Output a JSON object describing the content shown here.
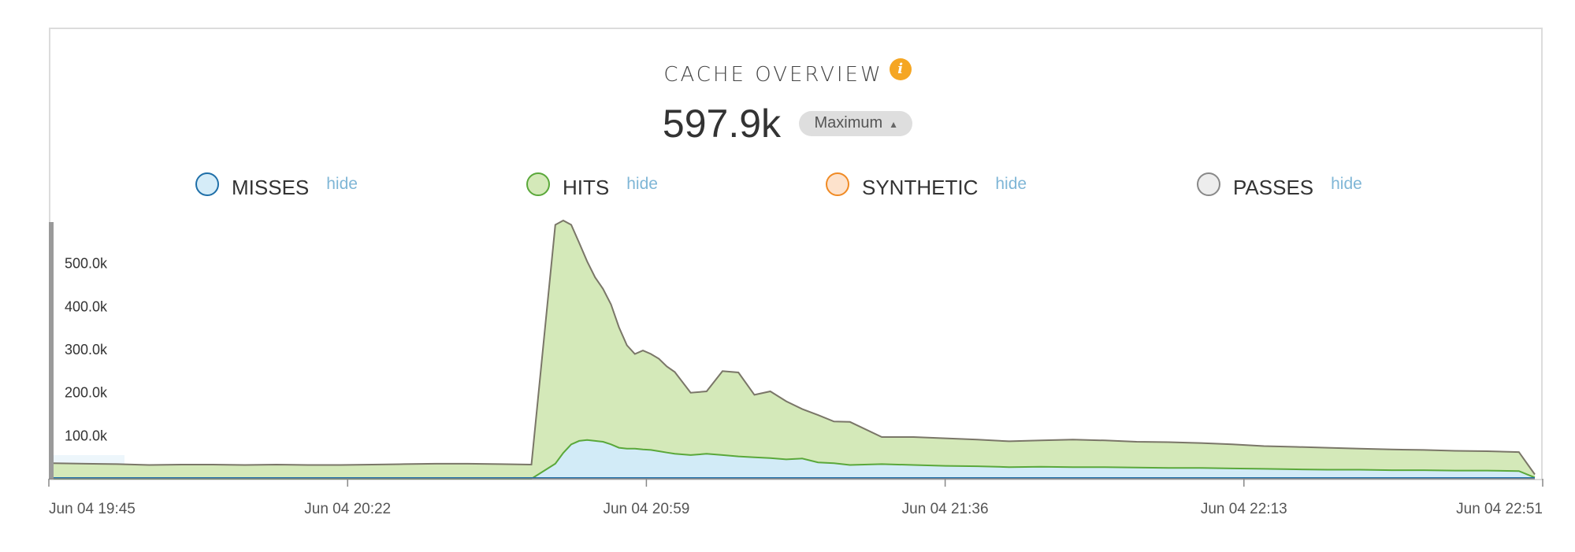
{
  "header": {
    "title": "CACHE OVERVIEW",
    "metric_value": "597.9k",
    "aggregation_select": "Maximum"
  },
  "legend": [
    {
      "label": "MISSES",
      "action": "hide",
      "stroke": "#1f6fa8",
      "fill": "#d5ecf8"
    },
    {
      "label": "HITS",
      "action": "hide",
      "stroke": "#5aa83a",
      "fill": "#d4e9b9"
    },
    {
      "label": "SYNTHETIC",
      "action": "hide",
      "stroke": "#f08a24",
      "fill": "#fde2cc"
    },
    {
      "label": "PASSES",
      "action": "hide",
      "stroke": "#888888",
      "fill": "#ededed"
    }
  ],
  "colors": {
    "misses_fill": "#d2ebf7",
    "misses_line": "#1f6fa8",
    "hits_fill": "#d4e9b9",
    "hits_line": "#5aa83a",
    "top_line": "#7a7668",
    "axis": "#888888",
    "info": "#f5a623"
  },
  "chart_data": {
    "type": "area",
    "stacked": true,
    "x_tick_labels": [
      "Jun 04 19:45",
      "Jun 04 20:22",
      "Jun 04 20:59",
      "Jun 04 21:36",
      "Jun 04 22:13",
      "Jun 04 22:51"
    ],
    "x_range": [
      "Jun 04 19:45",
      "Jun 04 22:51"
    ],
    "y_tick_labels": [
      "100.0k",
      "200.0k",
      "300.0k",
      "400.0k",
      "500.0k"
    ],
    "y_ticks": [
      100000,
      200000,
      300000,
      400000,
      500000
    ],
    "ylim": [
      0,
      600000
    ],
    "x_minutes": [
      0,
      4,
      8,
      12,
      16,
      20,
      24,
      28,
      32,
      36,
      40,
      44,
      48,
      52,
      56,
      60,
      63,
      64,
      65,
      66,
      67,
      68,
      69,
      70,
      71,
      72,
      73,
      74,
      75,
      76,
      77,
      78,
      80,
      82,
      84,
      86,
      88,
      90,
      92,
      94,
      96,
      98,
      100,
      104,
      108,
      112,
      116,
      120,
      124,
      128,
      132,
      136,
      140,
      144,
      148,
      152,
      156,
      160,
      164,
      168,
      172,
      176,
      180,
      184,
      186
    ],
    "series": [
      {
        "name": "MISSES",
        "values": [
          0,
          0,
          0,
          0,
          0,
          0,
          0,
          0,
          0,
          0,
          0,
          0,
          0,
          0,
          0,
          0,
          35000,
          60000,
          80000,
          88000,
          90000,
          88000,
          86000,
          80000,
          72000,
          70000,
          70000,
          68000,
          67000,
          64000,
          61000,
          58000,
          55000,
          58000,
          55000,
          52000,
          50000,
          48000,
          45000,
          47000,
          38000,
          36000,
          32000,
          34000,
          32000,
          30000,
          29000,
          27000,
          28000,
          27000,
          27000,
          26000,
          25000,
          25000,
          24000,
          23000,
          22000,
          21000,
          21000,
          20000,
          20000,
          19000,
          19000,
          18000,
          3000
        ]
      },
      {
        "name": "HITS",
        "values": [
          36000,
          35000,
          34000,
          32000,
          33000,
          33000,
          32000,
          33000,
          32000,
          32000,
          33000,
          34000,
          35000,
          35000,
          34000,
          33000,
          555000,
          540000,
          510000,
          460000,
          415000,
          380000,
          355000,
          325000,
          280000,
          240000,
          220000,
          230000,
          223000,
          215000,
          200000,
          190000,
          145000,
          145000,
          195000,
          195000,
          145000,
          155000,
          135000,
          115000,
          110000,
          97000,
          100000,
          63000,
          65000,
          64000,
          62000,
          60000,
          61000,
          64000,
          62000,
          60000,
          60000,
          58000,
          56000,
          53000,
          52000,
          51000,
          49000,
          48000,
          47000,
          46000,
          45000,
          44000,
          7000
        ]
      }
    ]
  }
}
